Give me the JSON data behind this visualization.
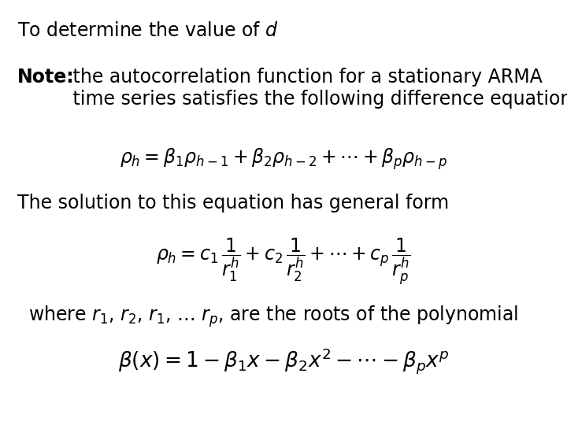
{
  "background_color": "#ffffff",
  "title_line": "To determine the value of $d$",
  "note_bold": "Note:",
  "note_rest": " the autocorrelation function for a stationary ARMA\n time series satisfies the following difference equation",
  "solution_text": "The solution to this equation has general form",
  "where_text": "where $r_1$, $r_2$, $r_1$, $\\ldots$ $r_p$, are the roots of the polynomial",
  "fontsize_title": 17,
  "fontsize_note": 17,
  "fontsize_eq1": 17,
  "fontsize_solution": 17,
  "fontsize_eq2": 17,
  "fontsize_where": 17,
  "fontsize_eq3": 19
}
